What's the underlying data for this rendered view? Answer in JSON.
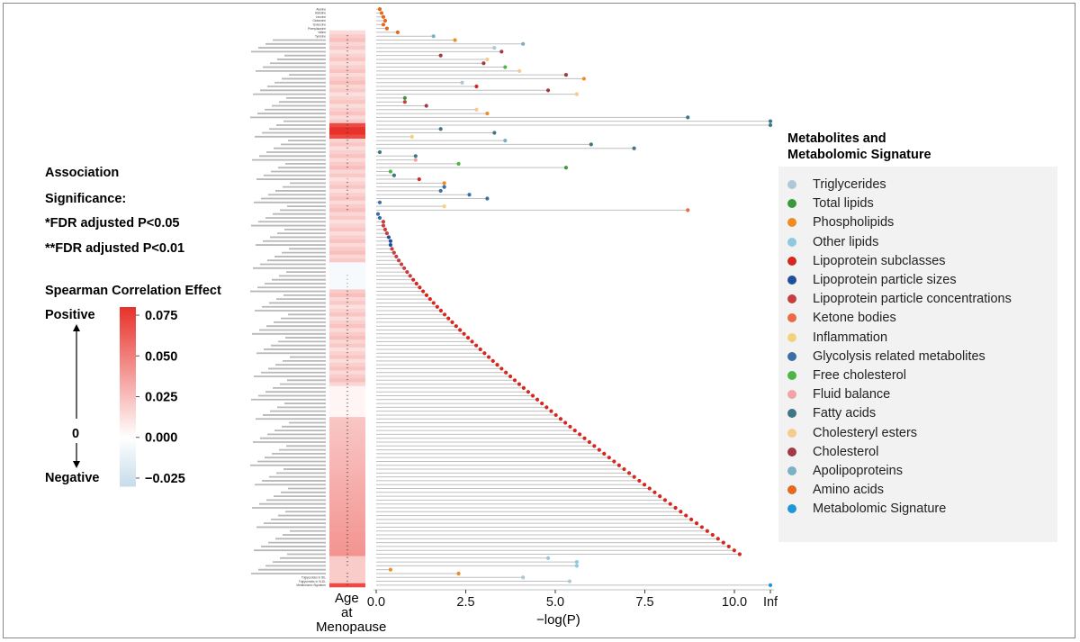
{
  "chart_data": {
    "type": "lollipop-heatmap",
    "heatmap_column_label": "Age at Menopause",
    "heatmap_column_lines": [
      "Age",
      "at",
      "Menopause"
    ],
    "xlabel": "−log(P)",
    "x_tick_labels": [
      "0.0",
      "2.5",
      "5.0",
      "7.5",
      "10.0",
      "Inf"
    ],
    "x_ticks": [
      0,
      2.5,
      5.0,
      7.5,
      10.0
    ],
    "xlim": [
      0,
      11
    ],
    "inf_value_position": 11,
    "color_scale": {
      "title": "Spearman Correlation Effect",
      "ticks": [
        "0.075",
        "0.050",
        "0.025",
        "0.000",
        "−0.025"
      ],
      "tick_values": [
        0.075,
        0.05,
        0.025,
        0.0,
        -0.025
      ],
      "range": [
        -0.03,
        0.08
      ],
      "positive_label": "Positive",
      "zero_label": "0",
      "negative_label": "Negative",
      "high_color": "#e8312a",
      "mid_color": "#ffffff",
      "low_color": "#c6dcea"
    },
    "significance": {
      "title_line1": "Association",
      "title_line2": "Significance:",
      "star1": "*FDR adjusted P<0.05",
      "star2": "**FDR adjusted P<0.01"
    },
    "legend_title_line1": "Metabolites and",
    "legend_title_line2": "Metabolomic  Signature",
    "categories": [
      {
        "name": "Triglycerides",
        "color": "#adc8d4"
      },
      {
        "name": "Total lipids",
        "color": "#3a9a3a"
      },
      {
        "name": "Phospholipids",
        "color": "#f08a24"
      },
      {
        "name": "Other lipids",
        "color": "#8ec9e0"
      },
      {
        "name": "Lipoprotein subclasses",
        "color": "#d7261e"
      },
      {
        "name": "Lipoprotein particle sizes",
        "color": "#1f4e9a"
      },
      {
        "name": "Lipoprotein particle concentrations",
        "color": "#c83e3e"
      },
      {
        "name": "Ketone bodies",
        "color": "#ea6a45"
      },
      {
        "name": "Inflammation",
        "color": "#f3d27a"
      },
      {
        "name": "Glycolysis related metabolites",
        "color": "#3a6ea5"
      },
      {
        "name": "Free cholesterol",
        "color": "#4cb543"
      },
      {
        "name": "Fluid balance",
        "color": "#f2a3a8"
      },
      {
        "name": "Fatty acids",
        "color": "#3f7686"
      },
      {
        "name": "Cholesteryl esters",
        "color": "#f7c98c"
      },
      {
        "name": "Cholesterol",
        "color": "#a23a44"
      },
      {
        "name": "Apolipoproteins",
        "color": "#7ab1c4"
      },
      {
        "name": "Amino acids",
        "color": "#e06b1f"
      },
      {
        "name": "Metabolomic Signature",
        "color": "#2196d6"
      }
    ],
    "row_labels_first": [
      "Alanine",
      "Histidine",
      "Leucine",
      "Glutamine",
      "Isoleucine",
      "Phenylalanine",
      "Valine",
      "Tyrosine"
    ],
    "row_labels_last": [
      "Triglycerides in IDL",
      "Triglycerides in VLDL",
      "Metabolomic Signature"
    ],
    "row_count": 150,
    "rows_note": "row-level values estimated from the figure",
    "series_neglogp_first": [
      0.1,
      0.15,
      0.2,
      0.25,
      0.2,
      0.3,
      0.6,
      1.6,
      2.2,
      4.1,
      3.3,
      3.5
    ],
    "series_neglogp_max_finite": 10.2,
    "signature_neglogp": "Inf"
  }
}
